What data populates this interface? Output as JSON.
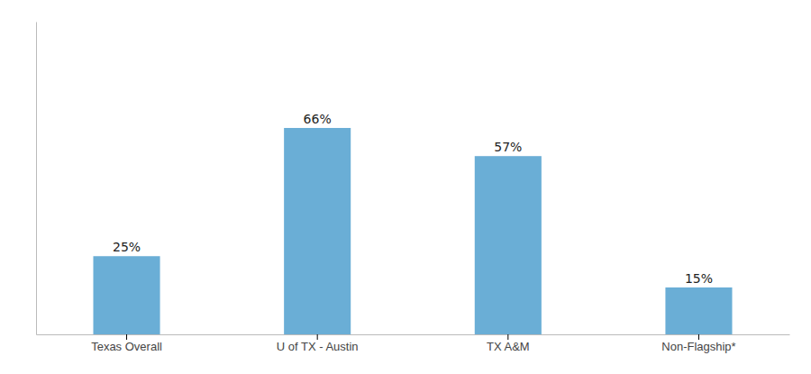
{
  "chart_data": {
    "type": "bar",
    "categories": [
      "Texas Overall",
      "U of TX - Austin",
      "TX A&M",
      "Non-Flagship*"
    ],
    "values": [
      25,
      66,
      57,
      15
    ],
    "value_labels": [
      "25%",
      "66%",
      "57%",
      "15%"
    ],
    "color": "#6aaed6",
    "ylim": [
      0,
      100
    ],
    "data_labels": true,
    "tick_labels": "x",
    "grid": false
  }
}
